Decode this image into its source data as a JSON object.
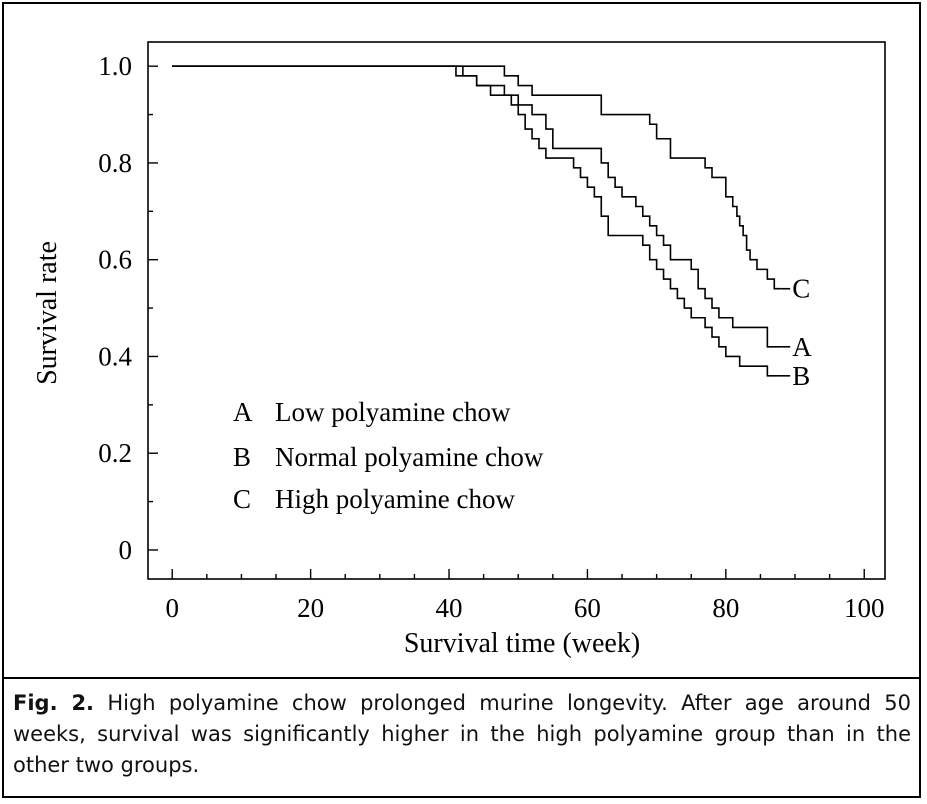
{
  "caption": {
    "label": "Fig. 2.",
    "text": "High polyamine chow prolonged murine longevity. After age around 50 weeks, survival was significantly higher in the high polyamine group than in the other two groups."
  },
  "chart_data": {
    "type": "line",
    "step": true,
    "xlabel": "Survival time (week)",
    "ylabel": "Survival rate",
    "xlim": [
      -3.5,
      103
    ],
    "ylim": [
      -0.06,
      1.05
    ],
    "xticks": [
      0,
      20,
      40,
      60,
      80,
      100
    ],
    "yticks": [
      0,
      0.2,
      0.4,
      0.6,
      0.8,
      1.0
    ],
    "ytick_labels": [
      "0",
      "0.2",
      "0.4",
      "0.6",
      "0.8",
      "1.0"
    ],
    "grid": false,
    "legend": [
      {
        "key": "A",
        "label": "Low polyamine chow"
      },
      {
        "key": "B",
        "label": "Normal polyamine chow"
      },
      {
        "key": "C",
        "label": "High polyamine chow"
      }
    ],
    "series": [
      {
        "name": "A",
        "x": [
          0,
          40,
          41,
          43,
          44,
          47,
          48,
          49,
          50,
          52,
          54,
          55,
          60,
          62,
          63,
          64,
          65,
          66,
          67,
          68,
          69,
          70,
          71,
          72,
          74,
          75,
          76,
          77,
          78,
          79,
          81,
          83,
          86,
          88
        ],
        "y": [
          1.0,
          1.0,
          0.98,
          0.98,
          0.96,
          0.96,
          0.94,
          0.94,
          0.92,
          0.9,
          0.87,
          0.83,
          0.83,
          0.8,
          0.77,
          0.75,
          0.73,
          0.73,
          0.71,
          0.69,
          0.67,
          0.65,
          0.63,
          0.6,
          0.6,
          0.58,
          0.54,
          0.52,
          0.5,
          0.48,
          0.46,
          0.46,
          0.42,
          0.42
        ]
      },
      {
        "name": "B",
        "x": [
          0,
          40,
          42,
          44,
          46,
          49,
          50,
          51,
          52,
          53,
          54,
          55,
          58,
          59,
          60,
          61,
          62,
          63,
          67,
          68,
          69,
          70,
          71,
          72,
          73,
          74,
          75,
          76,
          77,
          78,
          79,
          80,
          82,
          83,
          86,
          88
        ],
        "y": [
          1.0,
          1.0,
          0.98,
          0.96,
          0.94,
          0.92,
          0.9,
          0.87,
          0.85,
          0.83,
          0.81,
          0.81,
          0.79,
          0.77,
          0.75,
          0.73,
          0.69,
          0.65,
          0.65,
          0.63,
          0.6,
          0.58,
          0.56,
          0.54,
          0.52,
          0.5,
          0.48,
          0.48,
          0.46,
          0.44,
          0.42,
          0.4,
          0.38,
          0.38,
          0.36,
          0.36
        ]
      },
      {
        "name": "C",
        "x": [
          0,
          43,
          48,
          50,
          52,
          61,
          62,
          67,
          69,
          70,
          72,
          73,
          77,
          78,
          80,
          81,
          81.6,
          82,
          82.5,
          83,
          83.5,
          84,
          84.5,
          85,
          86,
          87,
          88
        ],
        "y": [
          1.0,
          1.0,
          0.98,
          0.96,
          0.94,
          0.94,
          0.9,
          0.9,
          0.88,
          0.85,
          0.81,
          0.81,
          0.79,
          0.77,
          0.73,
          0.71,
          0.69,
          0.67,
          0.65,
          0.62,
          0.6,
          0.6,
          0.58,
          0.58,
          0.56,
          0.54,
          0.54
        ]
      }
    ],
    "line_color": "#000000"
  }
}
